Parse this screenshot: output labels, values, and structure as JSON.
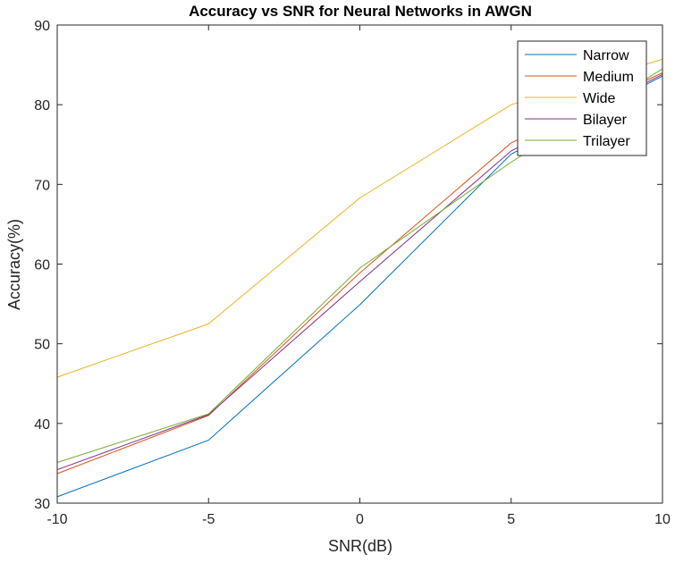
{
  "chart_data": {
    "type": "line",
    "title": "Accuracy vs SNR for Neural Networks in AWGN",
    "xlabel": "SNR(dB)",
    "ylabel": "Accuracy(%)",
    "xlim": [
      -10,
      10
    ],
    "ylim": [
      30,
      90
    ],
    "xticks": [
      -10,
      -5,
      0,
      5,
      10
    ],
    "yticks": [
      30,
      40,
      50,
      60,
      70,
      80,
      90
    ],
    "grid": false,
    "legend_position": "top-right",
    "x": [
      -10,
      -5,
      0,
      5,
      10
    ],
    "series": [
      {
        "name": "Narrow",
        "color": "#0072BD",
        "values": [
          30.8,
          37.9,
          54.9,
          73.8,
          83.6
        ]
      },
      {
        "name": "Medium",
        "color": "#D95319",
        "values": [
          33.7,
          41.0,
          58.9,
          75.2,
          84.0
        ]
      },
      {
        "name": "Wide",
        "color": "#EDB120",
        "values": [
          45.8,
          52.5,
          68.3,
          80.0,
          85.7
        ]
      },
      {
        "name": "Bilayer",
        "color": "#7E2F8E",
        "values": [
          34.2,
          41.1,
          57.8,
          74.2,
          83.8
        ]
      },
      {
        "name": "Trilayer",
        "color": "#77AC30",
        "values": [
          35.1,
          41.2,
          59.5,
          72.8,
          84.5
        ]
      }
    ]
  }
}
